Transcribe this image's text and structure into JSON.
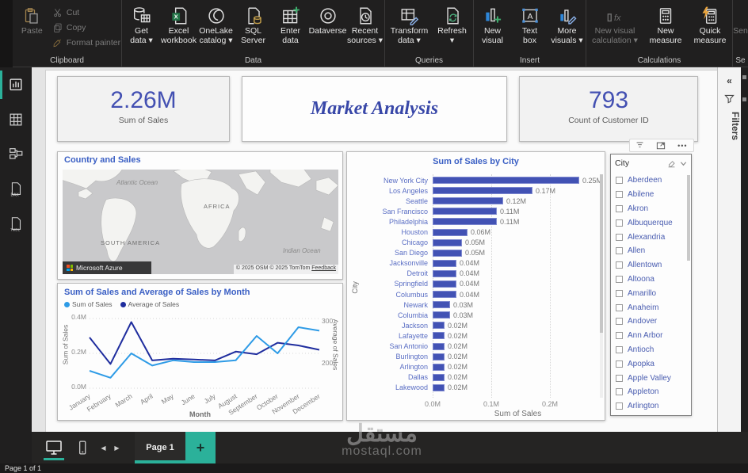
{
  "accent": {
    "teal": "#2BB19A",
    "indigo": "#4252B4",
    "title_blue": "#3A5FC4",
    "light_blue": "#2E9BE6",
    "navy": "#1F2D9E"
  },
  "ribbon": {
    "clipboard": {
      "group": "Clipboard",
      "paste": "Paste",
      "cut": "Cut",
      "copy": "Copy",
      "format_painter": "Format painter"
    },
    "data": {
      "group": "Data",
      "get_data": "Get\ndata ▾",
      "excel_workbook": "Excel\nworkbook",
      "onelake": "OneLake\ncatalog ▾",
      "sql_server": "SQL\nServer",
      "enter_data": "Enter\ndata",
      "dataverse": "Dataverse",
      "recent_sources": "Recent\nsources ▾"
    },
    "queries": {
      "group": "Queries",
      "transform": "Transform\ndata ▾",
      "refresh": "Refresh\n▾"
    },
    "insert": {
      "group": "Insert",
      "new_visual": "New\nvisual",
      "text_box": "Text\nbox",
      "more_visuals": "More\nvisuals ▾"
    },
    "calculations": {
      "group": "Calculations",
      "new_visual_calc": "New visual\ncalculation ▾",
      "new_measure": "New\nmeasure",
      "quick_measure": "Quick\nmeasure"
    },
    "sensitivity": {
      "group": "Se",
      "item": "Sen"
    }
  },
  "cards": {
    "sales": {
      "value": "2.26M",
      "label": "Sum of Sales"
    },
    "customers": {
      "value": "793",
      "label": "Count of Customer ID"
    }
  },
  "title_box": "Market Analysis",
  "map": {
    "title": "Country and Sales",
    "labels": {
      "atlantic": "Atlantic Ocean",
      "africa": "AFRICA",
      "south_america": "SOUTH AMERICA",
      "indian": "Indian Ocean"
    },
    "azure": "Microsoft Azure",
    "attribution": "© 2025 OSM © 2025 TomTom",
    "feedback": "Feedback"
  },
  "chart_data": [
    {
      "type": "bar",
      "orientation": "horizontal",
      "title": "Sum of Sales by City",
      "categories": [
        "New York City",
        "Los Angeles",
        "Seattle",
        "San Francisco",
        "Philadelphia",
        "Houston",
        "Chicago",
        "San Diego",
        "Jacksonville",
        "Detroit",
        "Springfield",
        "Columbus",
        "Newark",
        "Columbia",
        "Jackson",
        "Lafayette",
        "San Antonio",
        "Burlington",
        "Arlington",
        "Dallas",
        "Lakewood"
      ],
      "values": [
        0.25,
        0.17,
        0.12,
        0.11,
        0.11,
        0.06,
        0.05,
        0.05,
        0.04,
        0.04,
        0.04,
        0.04,
        0.03,
        0.03,
        0.02,
        0.02,
        0.02,
        0.02,
        0.02,
        0.02,
        0.02
      ],
      "labels": [
        "0.25M",
        "0.17M",
        "0.12M",
        "0.11M",
        "0.11M",
        "0.06M",
        "0.05M",
        "0.05M",
        "0.04M",
        "0.04M",
        "0.04M",
        "0.04M",
        "0.03M",
        "0.03M",
        "0.02M",
        "0.02M",
        "0.02M",
        "0.02M",
        "0.02M",
        "0.02M",
        "0.02M"
      ],
      "xlabel": "Sum of Sales",
      "ylabel": "City",
      "x_ticks": [
        "0.0M",
        "0.1M",
        "0.2M"
      ],
      "xlim": [
        0,
        0.29
      ],
      "grid": "dotted-vertical"
    },
    {
      "type": "line",
      "title": "Sum of Sales and Average of Sales by Month",
      "categories": [
        "January",
        "February",
        "March",
        "April",
        "May",
        "June",
        "July",
        "August",
        "September",
        "October",
        "November",
        "December"
      ],
      "series": [
        {
          "name": "Sum of Sales",
          "axis": "left",
          "color": "#2E9BE6",
          "values": [
            0.1,
            0.06,
            0.2,
            0.13,
            0.16,
            0.15,
            0.15,
            0.16,
            0.3,
            0.2,
            0.35,
            0.33
          ]
        },
        {
          "name": "Average of Sales",
          "axis": "right",
          "color": "#1F2D9E",
          "values": [
            264,
            204,
            299,
            212,
            216,
            214,
            212,
            232,
            226,
            252,
            246,
            236
          ]
        }
      ],
      "xlabel": "Month",
      "ylabel_left": "Sum of Sales",
      "ylabel_right": "Average of Sales",
      "y_left_ticks": [
        "0.0M",
        "0.2M",
        "0.4M"
      ],
      "y_right_ticks": [
        "200",
        "300"
      ],
      "y_left_max": 0.4,
      "y_right_min": 149,
      "y_right_max": 307,
      "legend_position": "top-left",
      "grid": "dotted-horizontal"
    }
  ],
  "slicer": {
    "header": "City",
    "items": [
      "Aberdeen",
      "Abilene",
      "Akron",
      "Albuquerque",
      "Alexandria",
      "Allen",
      "Allentown",
      "Altoona",
      "Amarillo",
      "Anaheim",
      "Andover",
      "Ann Arbor",
      "Antioch",
      "Apopka",
      "Apple Valley",
      "Appleton",
      "Arlington"
    ]
  },
  "filters_panel": {
    "title": "Filters"
  },
  "pages_bar": {
    "page_tab": "Page 1",
    "add": "+"
  },
  "status_bar": {
    "text": "Page 1 of 1"
  },
  "watermark": {
    "arabic": "مستقل",
    "domain": "mostaql.com"
  }
}
